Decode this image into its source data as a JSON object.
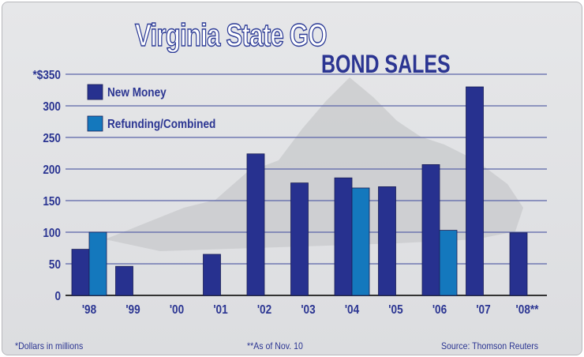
{
  "chart_data": {
    "type": "bar",
    "title": "Virginia State GO",
    "subtitle": "BOND SALES",
    "categories": [
      "'98",
      "'99",
      "'00",
      "'01",
      "'02",
      "'03",
      "'04",
      "'05",
      "'06",
      "'07",
      "'08**"
    ],
    "series": [
      {
        "name": "New Money",
        "color": "#27318f",
        "values": [
          73,
          46,
          0,
          65,
          224,
          178,
          186,
          172,
          207,
          330,
          99
        ]
      },
      {
        "name": "Refunding/Combined",
        "color": "#1478bd",
        "values": [
          100,
          0,
          0,
          0,
          0,
          0,
          170,
          0,
          103,
          0,
          0
        ]
      }
    ],
    "ylim": [
      0,
      350
    ],
    "yticks": [
      0,
      50,
      100,
      150,
      200,
      250,
      300,
      350
    ],
    "ytick_labels": [
      "0",
      "50",
      "100",
      "150",
      "200",
      "250",
      "300",
      "*$350"
    ],
    "grid": true,
    "legend": "top-left"
  },
  "footer": {
    "note": "*Dollars in millions",
    "asof": "**As of Nov. 10",
    "source": "Source: Thomson Reuters"
  }
}
